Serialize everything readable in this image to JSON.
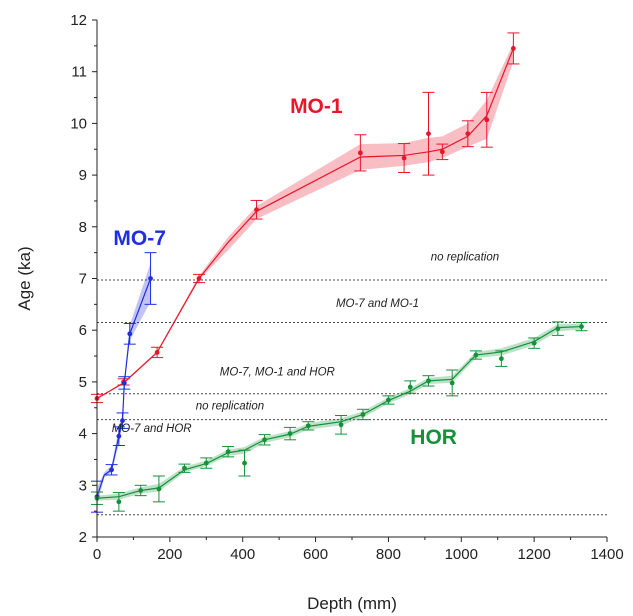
{
  "chart_data": {
    "type": "scatter",
    "title": "",
    "xlabel": "Depth (mm)",
    "ylabel": "Age (ka)",
    "xlim": [
      0,
      1400
    ],
    "ylim": [
      2,
      12
    ],
    "xticks": [
      "0",
      "200",
      "400",
      "600",
      "800",
      "1000",
      "1200",
      "1400"
    ],
    "yticks": [
      "2",
      "3",
      "4",
      "5",
      "6",
      "7",
      "8",
      "9",
      "10",
      "11",
      "12"
    ],
    "grid": false,
    "legend": "none",
    "reference_lines": [
      {
        "y": 6.97
      },
      {
        "y": 6.15
      },
      {
        "y": 4.77
      },
      {
        "y": 4.27
      },
      {
        "y": 2.43
      }
    ],
    "annotations": [
      {
        "text": "no replication",
        "x": 1010,
        "y": 7.35
      },
      {
        "text": "MO-7 and MO-1",
        "x": 770,
        "y": 6.45
      },
      {
        "text": "MO-7, MO-1 and HOR",
        "x": 495,
        "y": 5.12
      },
      {
        "text": "no replication",
        "x": 365,
        "y": 4.47
      },
      {
        "text": "MO-7 and HOR",
        "x": 150,
        "y": 4.03
      }
    ],
    "series": [
      {
        "name": "MO-1",
        "color": "#e8162b",
        "label_pos": {
          "x": 530,
          "y": 10.2
        },
        "points": [
          {
            "x": 0,
            "y": 4.68,
            "err": 0.08
          },
          {
            "x": 73,
            "y": 5.0,
            "err": 0.06
          },
          {
            "x": 165,
            "y": 5.57,
            "err": 0.1
          },
          {
            "x": 280,
            "y": 7.0,
            "err": 0.08
          },
          {
            "x": 438,
            "y": 8.33,
            "err": 0.18
          },
          {
            "x": 723,
            "y": 9.43,
            "err": 0.35
          },
          {
            "x": 843,
            "y": 9.33,
            "err": 0.28
          },
          {
            "x": 910,
            "y": 9.8,
            "err": 0.8
          },
          {
            "x": 948,
            "y": 9.45,
            "err": 0.15
          },
          {
            "x": 1018,
            "y": 9.8,
            "err": 0.25
          },
          {
            "x": 1070,
            "y": 10.07,
            "err": 0.53
          },
          {
            "x": 1143,
            "y": 11.45,
            "err": 0.3
          }
        ],
        "model": [
          {
            "x": 0,
            "y": 4.68,
            "lo": 4.68,
            "hi": 4.68
          },
          {
            "x": 73,
            "y": 4.98,
            "lo": 4.96,
            "hi": 5.0
          },
          {
            "x": 165,
            "y": 5.57,
            "lo": 5.55,
            "hi": 5.6
          },
          {
            "x": 280,
            "y": 7.0,
            "lo": 6.97,
            "hi": 7.05
          },
          {
            "x": 360,
            "y": 7.7,
            "lo": 7.55,
            "hi": 7.8
          },
          {
            "x": 438,
            "y": 8.3,
            "lo": 8.15,
            "hi": 8.4
          },
          {
            "x": 723,
            "y": 9.35,
            "lo": 9.1,
            "hi": 9.6
          },
          {
            "x": 843,
            "y": 9.38,
            "lo": 9.18,
            "hi": 9.62
          },
          {
            "x": 910,
            "y": 9.45,
            "lo": 9.25,
            "hi": 9.72
          },
          {
            "x": 948,
            "y": 9.5,
            "lo": 9.33,
            "hi": 9.75
          },
          {
            "x": 1018,
            "y": 9.75,
            "lo": 9.55,
            "hi": 10.0
          },
          {
            "x": 1070,
            "y": 10.15,
            "lo": 9.7,
            "hi": 10.45
          },
          {
            "x": 1143,
            "y": 11.45,
            "lo": 11.2,
            "hi": 11.55
          }
        ]
      },
      {
        "name": "MO-7",
        "color": "#1f2ee0",
        "label_pos": {
          "x": 45,
          "y": 7.65
        },
        "points": [
          {
            "x": 0,
            "y": 2.78,
            "err": 0.3
          },
          {
            "x": 40,
            "y": 3.3,
            "err": 0.1
          },
          {
            "x": 60,
            "y": 3.95,
            "err": 0.18
          },
          {
            "x": 70,
            "y": 4.25,
            "err": 0.15
          },
          {
            "x": 75,
            "y": 4.98,
            "err": 0.12
          },
          {
            "x": 90,
            "y": 5.93,
            "err": 0.2
          },
          {
            "x": 147,
            "y": 7.0,
            "err": 0.5
          }
        ],
        "model": [
          {
            "x": 0,
            "y": 2.78,
            "lo": 2.6,
            "hi": 2.95
          },
          {
            "x": 20,
            "y": 3.2,
            "lo": 3.15,
            "hi": 3.25
          },
          {
            "x": 40,
            "y": 3.3,
            "lo": 3.25,
            "hi": 3.38
          },
          {
            "x": 60,
            "y": 3.95,
            "lo": 3.8,
            "hi": 4.1
          },
          {
            "x": 70,
            "y": 4.25,
            "lo": 4.15,
            "hi": 4.38
          },
          {
            "x": 75,
            "y": 4.98,
            "lo": 4.9,
            "hi": 5.05
          },
          {
            "x": 90,
            "y": 5.93,
            "lo": 5.8,
            "hi": 6.1
          },
          {
            "x": 147,
            "y": 7.0,
            "lo": 6.55,
            "hi": 7.3
          }
        ]
      },
      {
        "name": "HOR",
        "color": "#13923a",
        "label_pos": {
          "x": 860,
          "y": 3.8
        },
        "points": [
          {
            "x": 0,
            "y": 2.75,
            "err": 0.12
          },
          {
            "x": 60,
            "y": 2.68,
            "err": 0.18
          },
          {
            "x": 120,
            "y": 2.9,
            "err": 0.1
          },
          {
            "x": 170,
            "y": 2.93,
            "err": 0.25
          },
          {
            "x": 240,
            "y": 3.33,
            "err": 0.08
          },
          {
            "x": 300,
            "y": 3.43,
            "err": 0.1
          },
          {
            "x": 360,
            "y": 3.65,
            "err": 0.1
          },
          {
            "x": 405,
            "y": 3.43,
            "err": 0.25
          },
          {
            "x": 460,
            "y": 3.88,
            "err": 0.1
          },
          {
            "x": 530,
            "y": 4.0,
            "err": 0.12
          },
          {
            "x": 580,
            "y": 4.15,
            "err": 0.08
          },
          {
            "x": 670,
            "y": 4.17,
            "err": 0.18
          },
          {
            "x": 730,
            "y": 4.37,
            "err": 0.1
          },
          {
            "x": 800,
            "y": 4.65,
            "err": 0.08
          },
          {
            "x": 860,
            "y": 4.9,
            "err": 0.12
          },
          {
            "x": 910,
            "y": 5.02,
            "err": 0.1
          },
          {
            "x": 975,
            "y": 4.98,
            "err": 0.25
          },
          {
            "x": 1040,
            "y": 5.52,
            "err": 0.08
          },
          {
            "x": 1110,
            "y": 5.45,
            "err": 0.15
          },
          {
            "x": 1200,
            "y": 5.75,
            "err": 0.1
          },
          {
            "x": 1265,
            "y": 6.03,
            "err": 0.13
          },
          {
            "x": 1330,
            "y": 6.07,
            "err": 0.08
          }
        ],
        "model": [
          {
            "x": 0,
            "y": 2.75,
            "lo": 2.7,
            "hi": 2.8
          },
          {
            "x": 60,
            "y": 2.78,
            "lo": 2.72,
            "hi": 2.84
          },
          {
            "x": 120,
            "y": 2.9,
            "lo": 2.84,
            "hi": 2.96
          },
          {
            "x": 170,
            "y": 2.95,
            "lo": 2.88,
            "hi": 3.03
          },
          {
            "x": 240,
            "y": 3.3,
            "lo": 3.25,
            "hi": 3.36
          },
          {
            "x": 300,
            "y": 3.42,
            "lo": 3.37,
            "hi": 3.48
          },
          {
            "x": 360,
            "y": 3.63,
            "lo": 3.57,
            "hi": 3.69
          },
          {
            "x": 405,
            "y": 3.68,
            "lo": 3.61,
            "hi": 3.74
          },
          {
            "x": 460,
            "y": 3.88,
            "lo": 3.82,
            "hi": 3.94
          },
          {
            "x": 530,
            "y": 3.99,
            "lo": 3.93,
            "hi": 4.05
          },
          {
            "x": 580,
            "y": 4.14,
            "lo": 4.08,
            "hi": 4.2
          },
          {
            "x": 670,
            "y": 4.23,
            "lo": 4.16,
            "hi": 4.3
          },
          {
            "x": 730,
            "y": 4.37,
            "lo": 4.31,
            "hi": 4.43
          },
          {
            "x": 800,
            "y": 4.64,
            "lo": 4.58,
            "hi": 4.7
          },
          {
            "x": 860,
            "y": 4.82,
            "lo": 4.76,
            "hi": 4.88
          },
          {
            "x": 910,
            "y": 5.02,
            "lo": 4.96,
            "hi": 5.08
          },
          {
            "x": 975,
            "y": 5.05,
            "lo": 4.98,
            "hi": 5.12
          },
          {
            "x": 1040,
            "y": 5.52,
            "lo": 5.46,
            "hi": 5.58
          },
          {
            "x": 1110,
            "y": 5.58,
            "lo": 5.51,
            "hi": 5.65
          },
          {
            "x": 1200,
            "y": 5.78,
            "lo": 5.71,
            "hi": 5.85
          },
          {
            "x": 1265,
            "y": 6.05,
            "lo": 5.98,
            "hi": 6.12
          },
          {
            "x": 1330,
            "y": 6.07,
            "lo": 6.01,
            "hi": 6.13
          }
        ]
      }
    ]
  }
}
